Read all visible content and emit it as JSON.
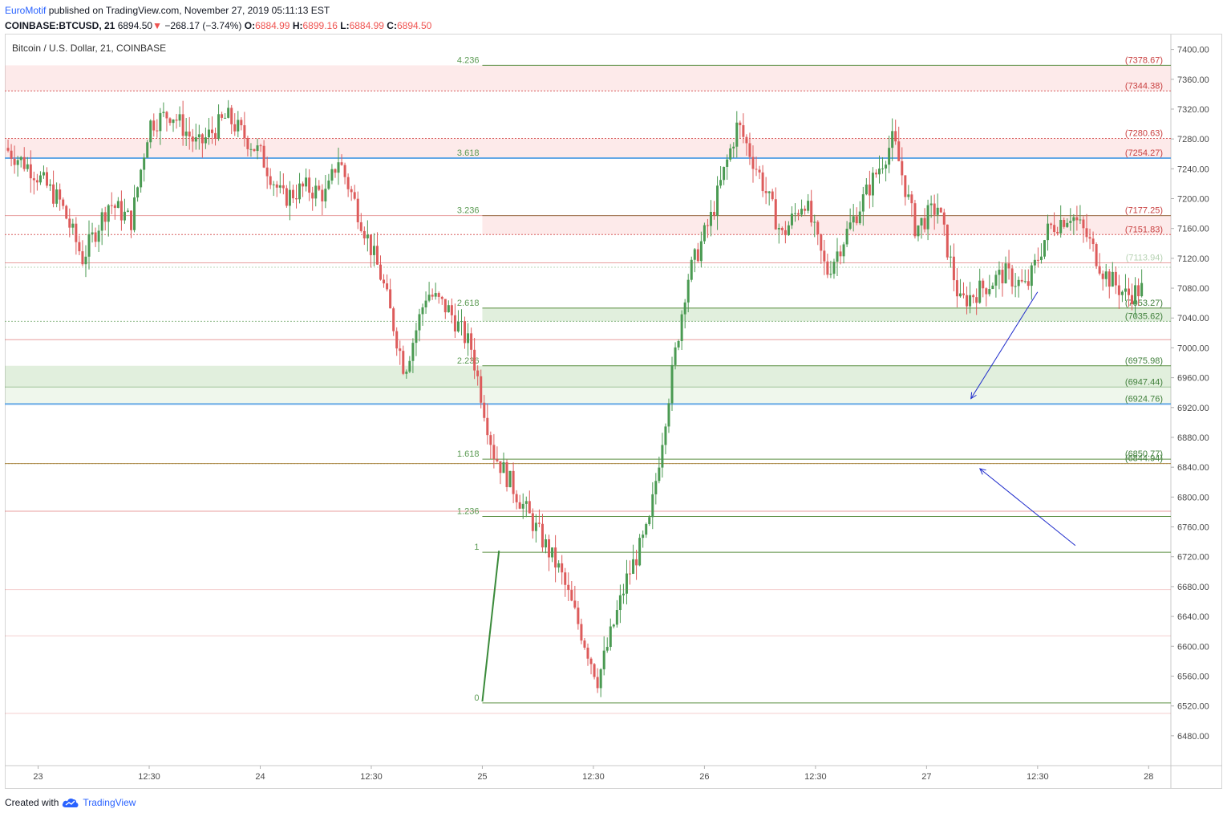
{
  "header": {
    "author": "EuroMotif",
    "published_text": "published on TradingView.com, November 27, 2019 05:11:13 EST",
    "symbol": "COINBASE:BTCUSD, 21",
    "last": "6894.50",
    "change_arrow": "▼",
    "change": "−268.17 (−3.74%)",
    "o_label": "O:",
    "o": "6884.99",
    "h_label": "H:",
    "h": "6899.16",
    "l_label": "L:",
    "l": "6884.99",
    "c_label": "C:",
    "c": "6894.50"
  },
  "footer": {
    "created_with": "Created with",
    "brand": "TradingView",
    "icon": "tradingview-cloud-icon"
  },
  "colors": {
    "up": "#4a9a52",
    "down": "#dd5b5b",
    "fib_line": "#5a8f42",
    "fib_label": "#5a9a52",
    "red_line": "#d95f5f",
    "blue_line": "#64a8e6",
    "arrow": "#1f2ccc",
    "axis_text": "#4a4a4a"
  },
  "chart_data": {
    "type": "candlestick",
    "title": "Bitcoin / U.S. Dollar, 21, COINBASE",
    "ylim": [
      6440,
      7420
    ],
    "y_ticks": [
      6480,
      6520,
      6560,
      6600,
      6640,
      6680,
      6720,
      6760,
      6800,
      6840,
      6880,
      6920,
      6960,
      7000,
      7040,
      7080,
      7120,
      7160,
      7200,
      7240,
      7280,
      7320,
      7360,
      7400
    ],
    "x_ticks": [
      "23",
      "12:30",
      "24",
      "12:30",
      "25",
      "12:30",
      "26",
      "12:30",
      "27",
      "12:30",
      "28"
    ],
    "x_range_days": [
      22.85,
      28.1
    ],
    "fib_levels": [
      {
        "ratio": "4.236",
        "price": 7378.67
      },
      {
        "ratio": "3.618",
        "price": 7254.27
      },
      {
        "ratio": "3.236",
        "price": 7177.25
      },
      {
        "ratio": "2.618",
        "price": 7053.27
      },
      {
        "ratio": "2.236",
        "price": 6975.98
      },
      {
        "ratio": "1.618",
        "price": 6850.77
      },
      {
        "ratio": "1.236",
        "price": 6774
      },
      {
        "ratio": "1",
        "price": 6726
      },
      {
        "ratio": "0",
        "price": 6524
      }
    ],
    "price_labels": [
      {
        "text": "(7378.67)",
        "kind": "red"
      },
      {
        "text": "(7344.38)",
        "kind": "red"
      },
      {
        "text": "(7280.63)",
        "kind": "red"
      },
      {
        "text": "(7254.27)",
        "kind": "red"
      },
      {
        "text": "(7177.25)",
        "kind": "red"
      },
      {
        "text": "(7151.83)",
        "kind": "red"
      },
      {
        "text": "(7113.94)",
        "kind": "faint"
      },
      {
        "text": "(7053.27)",
        "kind": "green"
      },
      {
        "text": "(7035.62)",
        "kind": "green"
      },
      {
        "text": "(6975.98)",
        "kind": "green"
      },
      {
        "text": "(6947.44)",
        "kind": "green"
      },
      {
        "text": "(6924.76)",
        "kind": "green"
      },
      {
        "text": "(6850.77)",
        "kind": "green"
      },
      {
        "text": "(6844.94)",
        "kind": "green"
      }
    ],
    "horizontal_lines": [
      {
        "price": 7378.67,
        "kind": "fib"
      },
      {
        "price": 7344.38,
        "kind": "red-dotted"
      },
      {
        "price": 7280.63,
        "kind": "red-dotted"
      },
      {
        "price": 7254.27,
        "kind": "blue"
      },
      {
        "price": 7177.25,
        "kind": "fib"
      },
      {
        "price": 7177.25,
        "kind": "red-thin"
      },
      {
        "price": 7151.83,
        "kind": "red-dotted"
      },
      {
        "price": 7113.94,
        "kind": "red-thin"
      },
      {
        "price": 7108,
        "kind": "faint-green"
      },
      {
        "price": 7053.27,
        "kind": "fib"
      },
      {
        "price": 7035.62,
        "kind": "green-dotted"
      },
      {
        "price": 7011,
        "kind": "red-thin"
      },
      {
        "price": 6975.98,
        "kind": "fib"
      },
      {
        "price": 6947.44,
        "kind": "green-thin"
      },
      {
        "price": 6924.76,
        "kind": "blue"
      },
      {
        "price": 6850.77,
        "kind": "fib"
      },
      {
        "price": 6844.94,
        "kind": "green-dotted"
      },
      {
        "price": 6844.94,
        "kind": "olive-thin"
      },
      {
        "price": 6781,
        "kind": "red-thin"
      },
      {
        "price": 6774,
        "kind": "fib"
      },
      {
        "price": 6726,
        "kind": "fib"
      },
      {
        "price": 6676,
        "kind": "red-faint"
      },
      {
        "price": 6614,
        "kind": "red-faint"
      },
      {
        "price": 6524,
        "kind": "fib"
      },
      {
        "price": 6510,
        "kind": "red-faint"
      }
    ],
    "zones": [
      {
        "y1": 7378.67,
        "y2": 7344.38,
        "kind": "red",
        "full": true
      },
      {
        "y1": 7280.63,
        "y2": 7254.27,
        "kind": "red",
        "full": true
      },
      {
        "y1": 7177.25,
        "y2": 7151.83,
        "kind": "red",
        "full": false
      },
      {
        "y1": 7053.27,
        "y2": 7035.62,
        "kind": "green",
        "full": false
      },
      {
        "y1": 6975.98,
        "y2": 6947.44,
        "kind": "green",
        "full": true
      },
      {
        "y1": 6947.44,
        "y2": 6924.76,
        "kind": "green-light",
        "full": true
      }
    ],
    "trend_line": {
      "t1": 25.0,
      "p1": 6526,
      "t2": 25.075,
      "p2": 6728
    },
    "annotations": [
      {
        "type": "arrow",
        "from": [
          27.5,
          7075
        ],
        "to": [
          27.2,
          6932
        ]
      },
      {
        "type": "arrow",
        "from": [
          27.67,
          6735
        ],
        "to": [
          27.24,
          6838
        ]
      }
    ],
    "anchors": [
      {
        "t": 22.85,
        "p": 7268
      },
      {
        "t": 22.97,
        "p": 7240
      },
      {
        "t": 23.1,
        "p": 7195
      },
      {
        "t": 23.2,
        "p": 7120
      },
      {
        "t": 23.32,
        "p": 7195
      },
      {
        "t": 23.42,
        "p": 7170
      },
      {
        "t": 23.5,
        "p": 7300
      },
      {
        "t": 23.6,
        "p": 7315
      },
      {
        "t": 23.72,
        "p": 7270
      },
      {
        "t": 23.85,
        "p": 7310
      },
      {
        "t": 24.0,
        "p": 7260
      },
      {
        "t": 24.1,
        "p": 7200
      },
      {
        "t": 24.2,
        "p": 7215
      },
      {
        "t": 24.3,
        "p": 7205
      },
      {
        "t": 24.35,
        "p": 7255
      },
      {
        "t": 24.45,
        "p": 7175
      },
      {
        "t": 24.55,
        "p": 7090
      },
      {
        "t": 24.65,
        "p": 6970
      },
      {
        "t": 24.75,
        "p": 7075
      },
      {
        "t": 24.85,
        "p": 7050
      },
      {
        "t": 24.95,
        "p": 7000
      },
      {
        "t": 25.05,
        "p": 6860
      },
      {
        "t": 25.2,
        "p": 6780
      },
      {
        "t": 25.35,
        "p": 6700
      },
      {
        "t": 25.52,
        "p": 6555
      },
      {
        "t": 25.65,
        "p": 6690
      },
      {
        "t": 25.75,
        "p": 6760
      },
      {
        "t": 25.82,
        "p": 6900
      },
      {
        "t": 25.92,
        "p": 7090
      },
      {
        "t": 26.03,
        "p": 7175
      },
      {
        "t": 26.15,
        "p": 7300
      },
      {
        "t": 26.25,
        "p": 7230
      },
      {
        "t": 26.35,
        "p": 7150
      },
      {
        "t": 26.45,
        "p": 7200
      },
      {
        "t": 26.55,
        "p": 7100
      },
      {
        "t": 26.65,
        "p": 7160
      },
      {
        "t": 26.75,
        "p": 7220
      },
      {
        "t": 26.85,
        "p": 7280
      },
      {
        "t": 26.95,
        "p": 7160
      },
      {
        "t": 27.05,
        "p": 7190
      },
      {
        "t": 27.15,
        "p": 7060
      },
      {
        "t": 27.25,
        "p": 7080
      },
      {
        "t": 27.35,
        "p": 7100
      },
      {
        "t": 27.45,
        "p": 7080
      },
      {
        "t": 27.55,
        "p": 7160
      },
      {
        "t": 27.65,
        "p": 7180
      },
      {
        "t": 27.72,
        "p": 7150
      },
      {
        "t": 27.8,
        "p": 7100
      },
      {
        "t": 27.9,
        "p": 7070
      },
      {
        "t": 27.98,
        "p": 7080
      }
    ]
  }
}
